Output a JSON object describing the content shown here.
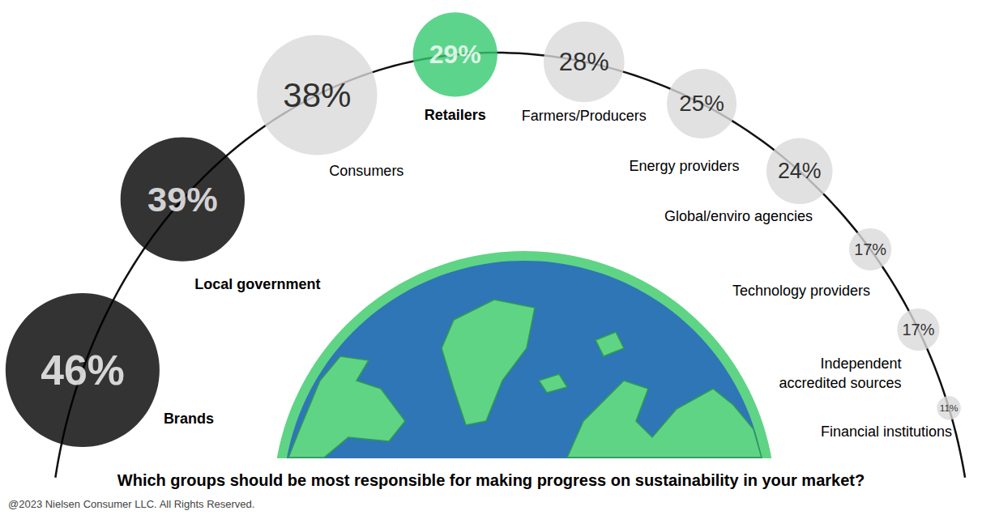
{
  "chart_data": {
    "type": "bubble",
    "title": "Which groups should be most responsible for making progress on sustainability in your market?",
    "annotation": "@2023 Nielsen Consumer LLC. All Rights Reserved.",
    "categories": [
      "Brands",
      "Local government",
      "Consumers",
      "Retailers",
      "Farmers/Producers",
      "Energy providers",
      "Global/enviro agencies",
      "Technology providers",
      "Independent accredited sources",
      "Financial institutions"
    ],
    "values": [
      46,
      39,
      38,
      29,
      28,
      25,
      24,
      17,
      17,
      11
    ],
    "value_labels": [
      "46%",
      "39%",
      "38%",
      "29%",
      "28%",
      "25%",
      "24%",
      "17%",
      "17%",
      "11%"
    ],
    "colors": [
      "#000000",
      "#000000",
      "#d9d9d9",
      "#34c96f",
      "#d9d9d9",
      "#d9d9d9",
      "#d9d9d9",
      "#d9d9d9",
      "#d9d9d9",
      "#d9d9d9"
    ],
    "data_labels": true
  }
}
